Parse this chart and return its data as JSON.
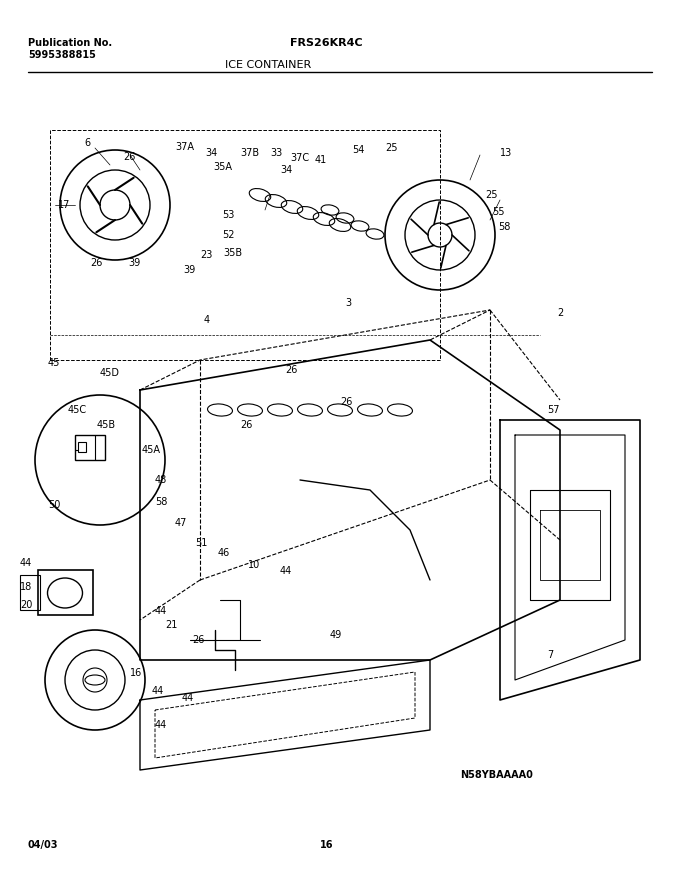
{
  "title_left_line1": "Publication No.",
  "title_left_line2": "5995388815",
  "title_center_line1": "FRS26KR4C",
  "title_center_line2": "ICE CONTAINER",
  "footer_left": "04/03",
  "footer_center": "16",
  "diagram_code": "N58YBAAAA0",
  "bg_color": "#ffffff",
  "line_color": "#000000",
  "fig_width": 6.8,
  "fig_height": 8.71,
  "dpi": 100
}
